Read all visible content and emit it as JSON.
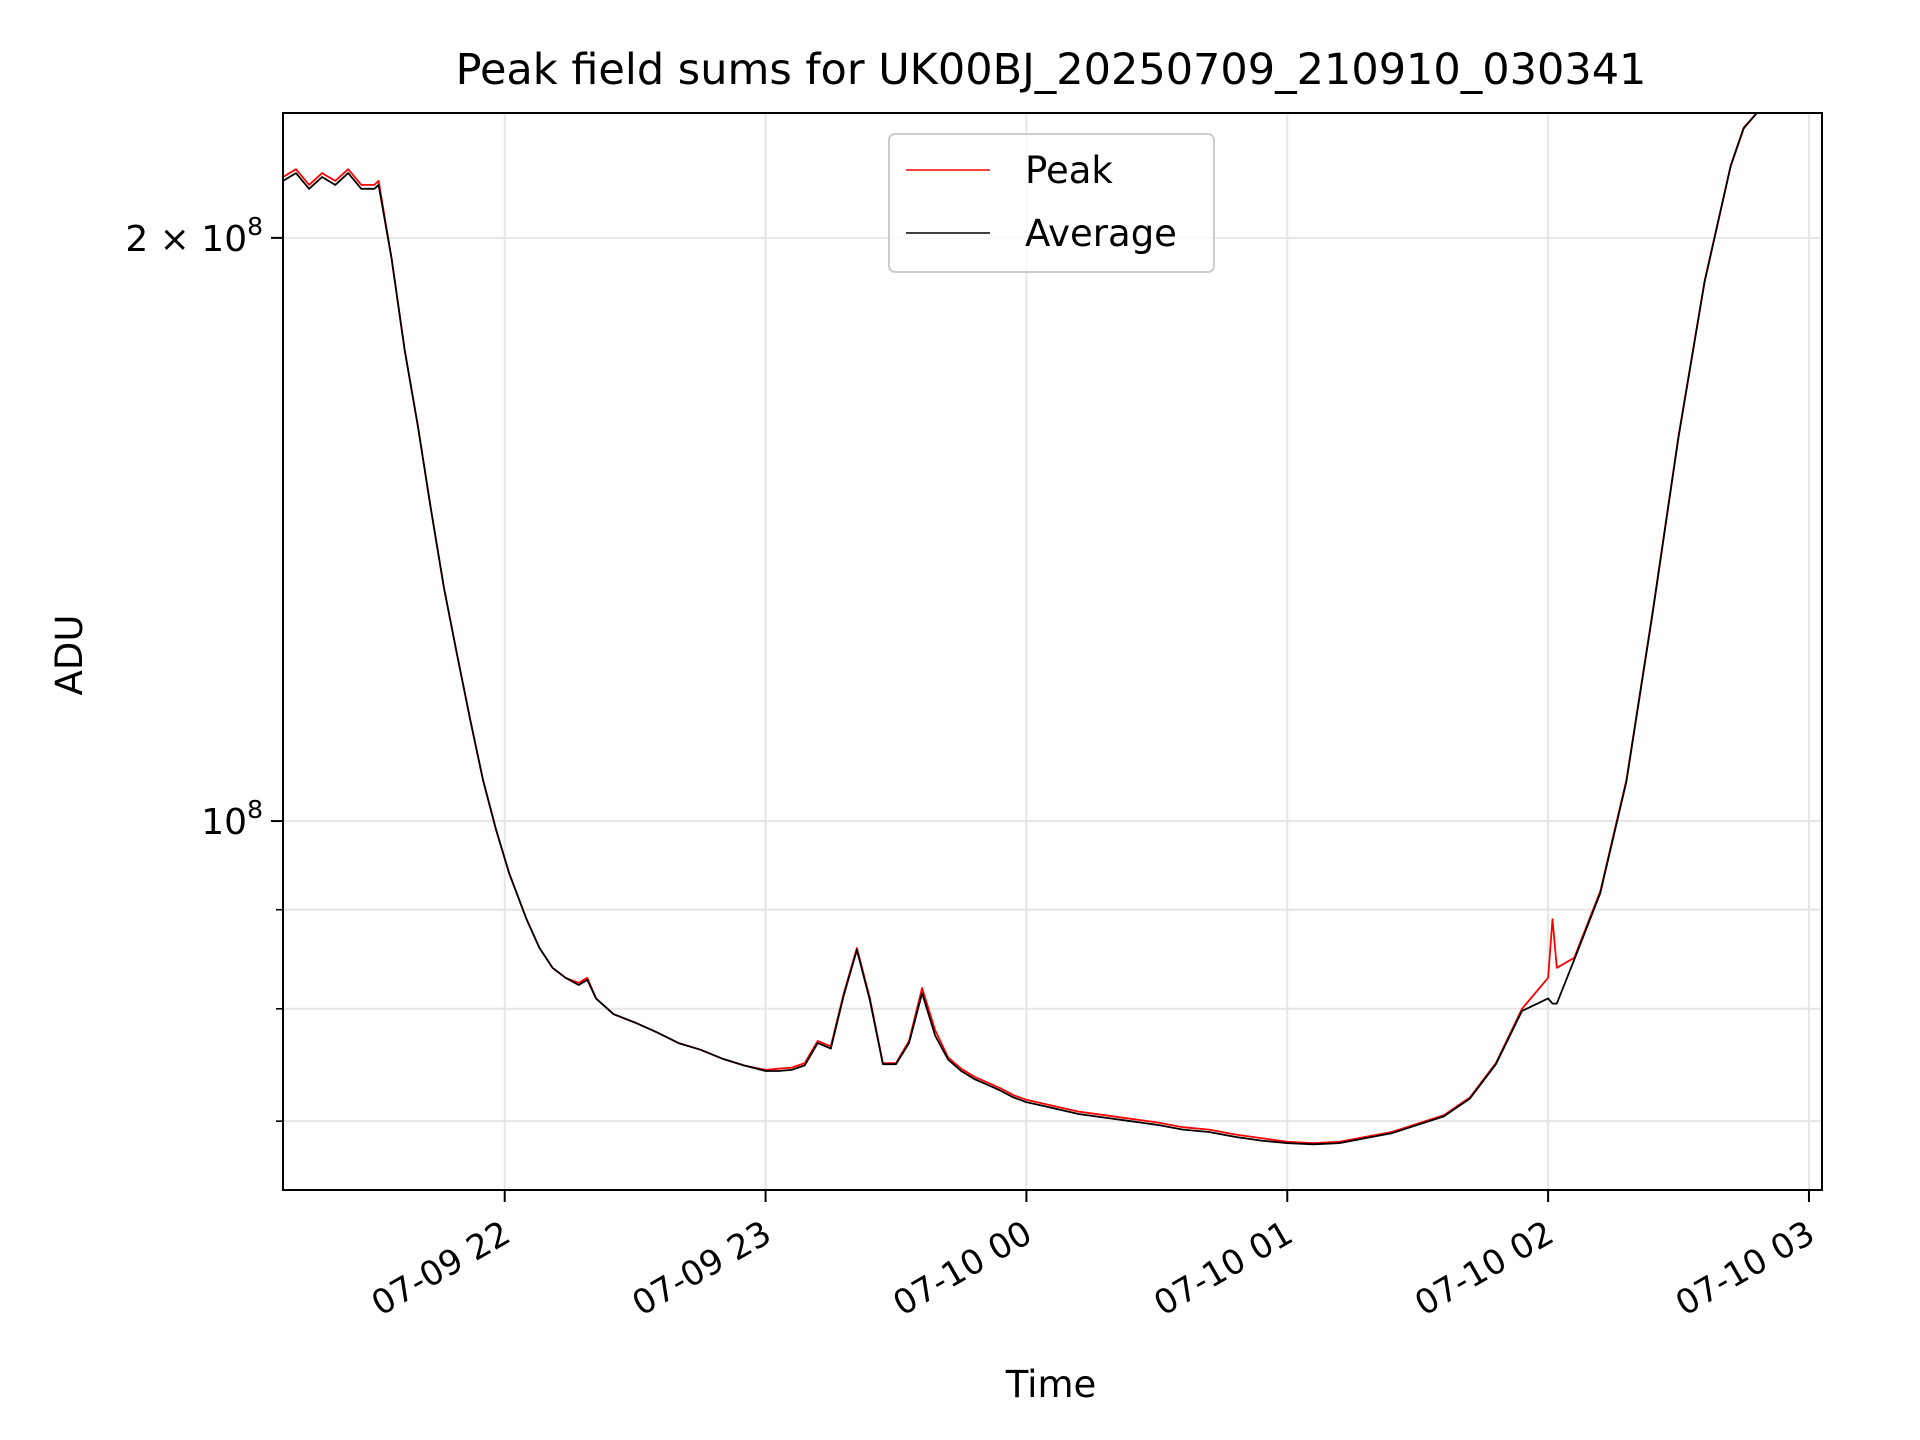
{
  "chart_data": {
    "type": "line",
    "title": "Peak field sums for UK00BJ_20250709_210910_030341",
    "xlabel": "Time",
    "ylabel": "ADU",
    "x_scale": "time",
    "y_scale": "log",
    "xlim": [
      "2025-07-09 21:09",
      "2025-07-10 03:03"
    ],
    "ylim": [
      64500000,
      232000000
    ],
    "grid": true,
    "legend_position": "upper-center",
    "x_ticks": [
      {
        "t": "2025-07-09 22:00",
        "label": "07-09 22"
      },
      {
        "t": "2025-07-09 23:00",
        "label": "07-09 23"
      },
      {
        "t": "2025-07-10 00:00",
        "label": "07-10 00"
      },
      {
        "t": "2025-07-10 01:00",
        "label": "07-10 01"
      },
      {
        "t": "2025-07-10 02:00",
        "label": "07-10 02"
      },
      {
        "t": "2025-07-10 03:00",
        "label": "07-10 03"
      }
    ],
    "y_major_ticks": [
      {
        "value": 100000000,
        "base": "10",
        "exp": "8"
      },
      {
        "value": 200000000,
        "base": "2 × 10",
        "exp": "8"
      }
    ],
    "y_minor_ticks": [
      70000000,
      80000000,
      90000000
    ],
    "series": [
      {
        "name": "Peak",
        "color": "#ff0000",
        "x": [
          "2025-07-09 21:09",
          "2025-07-09 21:12",
          "2025-07-09 21:15",
          "2025-07-09 21:18",
          "2025-07-09 21:21",
          "2025-07-09 21:24",
          "2025-07-09 21:27",
          "2025-07-09 21:30",
          "2025-07-09 21:31",
          "2025-07-09 21:34",
          "2025-07-09 21:37",
          "2025-07-09 21:40",
          "2025-07-09 21:43",
          "2025-07-09 21:46",
          "2025-07-09 21:49",
          "2025-07-09 21:52",
          "2025-07-09 21:55",
          "2025-07-09 21:58",
          "2025-07-09 22:01",
          "2025-07-09 22:05",
          "2025-07-09 22:08",
          "2025-07-09 22:11",
          "2025-07-09 22:14",
          "2025-07-09 22:17",
          "2025-07-09 22:19",
          "2025-07-09 22:21",
          "2025-07-09 22:25",
          "2025-07-09 22:30",
          "2025-07-09 22:35",
          "2025-07-09 22:40",
          "2025-07-09 22:45",
          "2025-07-09 22:50",
          "2025-07-09 22:55",
          "2025-07-09 23:00",
          "2025-07-09 23:03",
          "2025-07-09 23:06",
          "2025-07-09 23:09",
          "2025-07-09 23:12",
          "2025-07-09 23:15",
          "2025-07-09 23:18",
          "2025-07-09 23:21",
          "2025-07-09 23:24",
          "2025-07-09 23:27",
          "2025-07-09 23:30",
          "2025-07-09 23:33",
          "2025-07-09 23:36",
          "2025-07-09 23:39",
          "2025-07-09 23:42",
          "2025-07-09 23:45",
          "2025-07-09 23:48",
          "2025-07-09 23:51",
          "2025-07-09 23:54",
          "2025-07-09 23:57",
          "2025-07-10 00:00",
          "2025-07-10 00:06",
          "2025-07-10 00:12",
          "2025-07-10 00:18",
          "2025-07-10 00:24",
          "2025-07-10 00:30",
          "2025-07-10 00:36",
          "2025-07-10 00:42",
          "2025-07-10 00:48",
          "2025-07-10 00:54",
          "2025-07-10 01:00",
          "2025-07-10 01:06",
          "2025-07-10 01:12",
          "2025-07-10 01:18",
          "2025-07-10 01:24",
          "2025-07-10 01:30",
          "2025-07-10 01:36",
          "2025-07-10 01:42",
          "2025-07-10 01:48",
          "2025-07-10 01:54",
          "2025-07-10 02:00",
          "2025-07-10 02:01",
          "2025-07-10 02:02",
          "2025-07-10 02:06",
          "2025-07-10 02:12",
          "2025-07-10 02:18",
          "2025-07-10 02:24",
          "2025-07-10 02:30",
          "2025-07-10 02:36",
          "2025-07-10 02:42",
          "2025-07-10 02:45",
          "2025-07-10 02:48"
        ],
        "y": [
          215000000,
          217000000,
          213000000,
          216000000,
          214000000,
          217000000,
          213000000,
          213000000,
          214000000,
          195000000,
          175000000,
          160000000,
          145000000,
          132000000,
          122000000,
          113000000,
          105000000,
          99000000,
          94000000,
          89000000,
          86000000,
          84000000,
          83000000,
          82500000,
          83000000,
          81000000,
          79500000,
          78700000,
          77800000,
          76800000,
          76200000,
          75400000,
          74800000,
          74400000,
          74500000,
          74600000,
          75000000,
          77000000,
          76500000,
          81500000,
          86000000,
          81000000,
          75000000,
          75000000,
          77000000,
          82000000,
          78000000,
          75500000,
          74500000,
          73800000,
          73300000,
          72800000,
          72200000,
          71800000,
          71300000,
          70800000,
          70500000,
          70200000,
          69900000,
          69500000,
          69300000,
          68900000,
          68600000,
          68300000,
          68200000,
          68300000,
          68700000,
          69100000,
          69800000,
          70500000,
          72000000,
          75000000,
          80000000,
          83000000,
          89000000,
          84000000,
          85000000,
          92000000,
          105000000,
          128000000,
          158000000,
          190000000,
          218000000,
          228000000,
          232000000
        ]
      },
      {
        "name": "Average",
        "color": "#000000",
        "x": [
          "2025-07-09 21:09",
          "2025-07-09 21:12",
          "2025-07-09 21:15",
          "2025-07-09 21:18",
          "2025-07-09 21:21",
          "2025-07-09 21:24",
          "2025-07-09 21:27",
          "2025-07-09 21:30",
          "2025-07-09 21:31",
          "2025-07-09 21:34",
          "2025-07-09 21:37",
          "2025-07-09 21:40",
          "2025-07-09 21:43",
          "2025-07-09 21:46",
          "2025-07-09 21:49",
          "2025-07-09 21:52",
          "2025-07-09 21:55",
          "2025-07-09 21:58",
          "2025-07-09 22:01",
          "2025-07-09 22:05",
          "2025-07-09 22:08",
          "2025-07-09 22:11",
          "2025-07-09 22:14",
          "2025-07-09 22:17",
          "2025-07-09 22:19",
          "2025-07-09 22:21",
          "2025-07-09 22:25",
          "2025-07-09 22:30",
          "2025-07-09 22:35",
          "2025-07-09 22:40",
          "2025-07-09 22:45",
          "2025-07-09 22:50",
          "2025-07-09 22:55",
          "2025-07-09 23:00",
          "2025-07-09 23:03",
          "2025-07-09 23:06",
          "2025-07-09 23:09",
          "2025-07-09 23:12",
          "2025-07-09 23:15",
          "2025-07-09 23:18",
          "2025-07-09 23:21",
          "2025-07-09 23:24",
          "2025-07-09 23:27",
          "2025-07-09 23:30",
          "2025-07-09 23:33",
          "2025-07-09 23:36",
          "2025-07-09 23:39",
          "2025-07-09 23:42",
          "2025-07-09 23:45",
          "2025-07-09 23:48",
          "2025-07-09 23:51",
          "2025-07-09 23:54",
          "2025-07-09 23:57",
          "2025-07-10 00:00",
          "2025-07-10 00:06",
          "2025-07-10 00:12",
          "2025-07-10 00:18",
          "2025-07-10 00:24",
          "2025-07-10 00:30",
          "2025-07-10 00:36",
          "2025-07-10 00:42",
          "2025-07-10 00:48",
          "2025-07-10 00:54",
          "2025-07-10 01:00",
          "2025-07-10 01:06",
          "2025-07-10 01:12",
          "2025-07-10 01:18",
          "2025-07-10 01:24",
          "2025-07-10 01:30",
          "2025-07-10 01:36",
          "2025-07-10 01:42",
          "2025-07-10 01:48",
          "2025-07-10 01:54",
          "2025-07-10 02:00",
          "2025-07-10 02:01",
          "2025-07-10 02:02",
          "2025-07-10 02:06",
          "2025-07-10 02:12",
          "2025-07-10 02:18",
          "2025-07-10 02:24",
          "2025-07-10 02:30",
          "2025-07-10 02:36",
          "2025-07-10 02:42",
          "2025-07-10 02:45",
          "2025-07-10 02:48"
        ],
        "y": [
          214000000,
          216000000,
          212000000,
          215000000,
          213000000,
          216000000,
          212000000,
          212000000,
          213000000,
          195000000,
          175000000,
          160000000,
          145000000,
          132000000,
          122000000,
          113000000,
          105000000,
          99000000,
          94000000,
          89000000,
          86000000,
          84000000,
          83000000,
          82300000,
          82800000,
          81000000,
          79500000,
          78700000,
          77800000,
          76800000,
          76200000,
          75400000,
          74800000,
          74300000,
          74300000,
          74400000,
          74800000,
          76800000,
          76300000,
          81300000,
          85800000,
          80800000,
          74900000,
          74900000,
          76800000,
          81500000,
          77500000,
          75300000,
          74300000,
          73600000,
          73100000,
          72600000,
          72000000,
          71600000,
          71100000,
          70600000,
          70300000,
          70000000,
          69700000,
          69300000,
          69100000,
          68700000,
          68400000,
          68200000,
          68100000,
          68200000,
          68600000,
          69000000,
          69700000,
          70400000,
          71900000,
          74900000,
          79800000,
          81000000,
          80500000,
          80500000,
          84800000,
          91800000,
          104800000,
          127800000,
          157800000,
          189800000,
          217800000,
          227800000,
          232000000
        ]
      }
    ]
  }
}
